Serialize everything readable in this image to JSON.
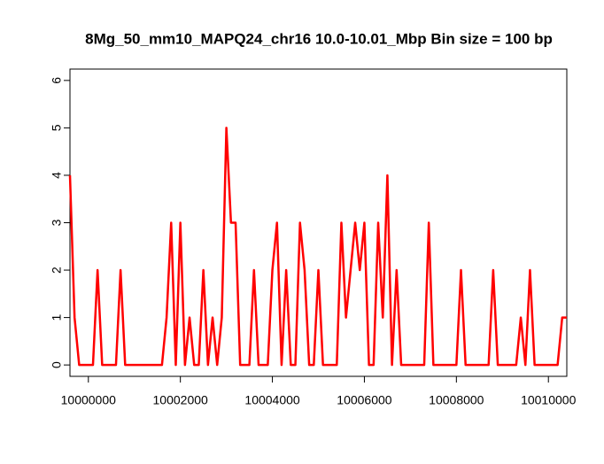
{
  "chart_data": {
    "type": "line",
    "title": "8Mg_50_mm10_MAPQ24_chr16 10.0-10.01_Mbp Bin size = 100 bp",
    "x": [
      9999600,
      9999700,
      9999800,
      9999900,
      10000000,
      10000100,
      10000200,
      10000300,
      10000400,
      10000500,
      10000600,
      10000700,
      10000800,
      10000900,
      10001000,
      10001100,
      10001200,
      10001300,
      10001400,
      10001500,
      10001600,
      10001700,
      10001800,
      10001900,
      10002000,
      10002100,
      10002200,
      10002300,
      10002400,
      10002500,
      10002600,
      10002700,
      10002800,
      10002900,
      10003000,
      10003100,
      10003200,
      10003300,
      10003400,
      10003500,
      10003600,
      10003700,
      10003800,
      10003900,
      10004000,
      10004100,
      10004200,
      10004300,
      10004400,
      10004500,
      10004600,
      10004700,
      10004800,
      10004900,
      10005000,
      10005100,
      10005200,
      10005300,
      10005400,
      10005500,
      10005600,
      10005700,
      10005800,
      10005900,
      10006000,
      10006100,
      10006200,
      10006300,
      10006400,
      10006500,
      10006600,
      10006700,
      10006800,
      10006900,
      10007000,
      10007100,
      10007200,
      10007300,
      10007400,
      10007500,
      10007600,
      10007700,
      10007800,
      10007900,
      10008000,
      10008100,
      10008200,
      10008300,
      10008400,
      10008500,
      10008600,
      10008700,
      10008800,
      10008900,
      10009000,
      10009100,
      10009200,
      10009300,
      10009400,
      10009500,
      10009600,
      10009700,
      10009800,
      10009900,
      10010000,
      10010100,
      10010200,
      10010300,
      10010400
    ],
    "series": [
      {
        "color": "#ff0000",
        "values": [
          4,
          1,
          0,
          0,
          0,
          0,
          2,
          0,
          0,
          0,
          0,
          2,
          0,
          0,
          0,
          0,
          0,
          0,
          0,
          0,
          0,
          1,
          3,
          0,
          3,
          0,
          1,
          0,
          0,
          2,
          0,
          1,
          0,
          1,
          5,
          3,
          3,
          0,
          0,
          0,
          2,
          0,
          0,
          0,
          2,
          3,
          0,
          2,
          0,
          0,
          3,
          2,
          0,
          0,
          2,
          0,
          0,
          0,
          0,
          3,
          1,
          2,
          3,
          2,
          3,
          0,
          0,
          3,
          1,
          4,
          0,
          2,
          0,
          0,
          0,
          0,
          0,
          0,
          3,
          0,
          0,
          0,
          0,
          0,
          0,
          2,
          0,
          0,
          0,
          0,
          0,
          0,
          2,
          0,
          0,
          0,
          0,
          0,
          1,
          0,
          2,
          0,
          0,
          0,
          0,
          0,
          0,
          1,
          1
        ]
      }
    ],
    "xlim": [
      9999600,
      10010400
    ],
    "xticks": [
      10000000,
      10002000,
      10004000,
      10006000,
      10008000,
      10010000
    ],
    "ylim": [
      -0.24,
      6.24
    ],
    "yticks": [
      0,
      1,
      2,
      3,
      4,
      5,
      6
    ],
    "grid": false
  }
}
